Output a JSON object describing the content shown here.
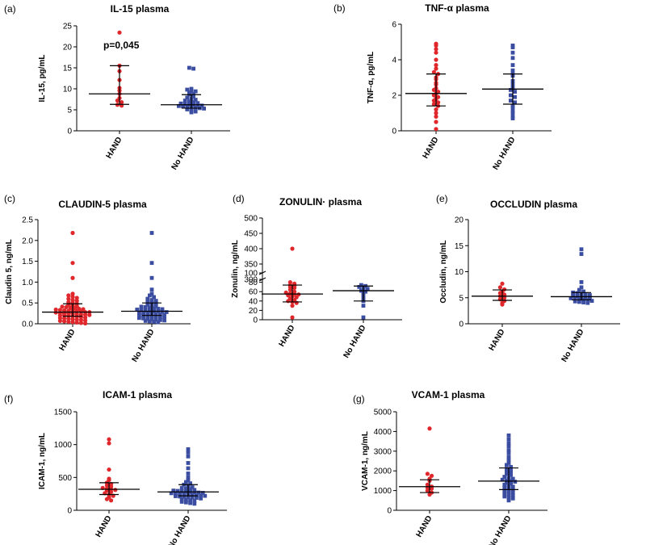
{
  "figure": {
    "background": "#ffffff",
    "hand_color": "#e0282c",
    "nohand_color": "#3a4da0"
  },
  "chart_data": [
    {
      "label": "(a)",
      "title": "IL-15 plasma",
      "type": "scatter",
      "ylabel": "IL-15, pg/mL",
      "ylim": [
        0,
        25
      ],
      "yticks": [
        "0",
        "5",
        "10",
        "15",
        "20",
        "25"
      ],
      "categories": [
        "HAND",
        "No HAND"
      ],
      "annotation": "p=0,045",
      "series": [
        {
          "name": "HAND",
          "marker": "circle",
          "median": 8.8,
          "iqr": [
            6.3,
            15.5
          ],
          "values": [
            23.4,
            15.5,
            14.2,
            12.1,
            10.2,
            9.6,
            8.8,
            7.8,
            7.2,
            6.8,
            6.2,
            6.0
          ]
        },
        {
          "name": "No HAND",
          "marker": "square",
          "median": 6.2,
          "iqr": [
            5.4,
            8.6
          ],
          "values": [
            15.0,
            14.8,
            10.0,
            9.8,
            9.5,
            9.4,
            9.1,
            8.8,
            8.6,
            8.2,
            7.9,
            7.6,
            7.4,
            7.2,
            7.0,
            6.8,
            6.6,
            6.5,
            6.4,
            6.3,
            6.2,
            6.1,
            6.0,
            5.9,
            5.8,
            5.7,
            5.6,
            5.5,
            5.4,
            5.3,
            5.1,
            4.8,
            4.6,
            4.4
          ]
        }
      ]
    },
    {
      "label": "(b)",
      "title": "TNF-α plasma",
      "type": "scatter",
      "ylabel": "TNF-α, pg/mL",
      "ylim": [
        0,
        6
      ],
      "yticks": [
        "0",
        "2",
        "4",
        "6"
      ],
      "categories": [
        "HAND",
        "No HAND"
      ],
      "series": [
        {
          "name": "HAND",
          "marker": "circle",
          "median": 2.1,
          "iqr": [
            1.4,
            3.2
          ],
          "values": [
            4.9,
            4.8,
            4.6,
            4.4,
            4.0,
            3.7,
            3.5,
            3.3,
            3.2,
            3.0,
            2.9,
            2.7,
            2.6,
            2.4,
            2.3,
            2.2,
            2.1,
            2.0,
            1.9,
            1.8,
            1.7,
            1.6,
            1.5,
            1.4,
            1.2,
            1.0,
            0.8,
            0.5,
            0.1
          ]
        },
        {
          "name": "No HAND",
          "marker": "square",
          "median": 2.35,
          "iqr": [
            1.5,
            3.2
          ],
          "values": [
            4.8,
            4.7,
            4.4,
            4.1,
            3.7,
            3.4,
            3.2,
            3.1,
            2.8,
            2.6,
            2.4,
            2.3,
            2.2,
            2.0,
            1.9,
            1.7,
            1.6,
            1.4,
            1.3,
            1.1,
            1.0,
            0.8,
            0.7
          ]
        }
      ]
    },
    {
      "label": "(c)",
      "title": "CLAUDIN-5 plasma",
      "type": "scatter",
      "ylabel": "Claudin 5, ng/mL",
      "ylim": [
        0,
        2.5
      ],
      "yticks": [
        "0.0",
        "0.5",
        "1.0",
        "1.5",
        "2.0",
        "2.5"
      ],
      "categories": [
        "HAND",
        "No HAND"
      ],
      "series": [
        {
          "name": "HAND",
          "marker": "circle",
          "median": 0.28,
          "iqr": [
            0.18,
            0.48
          ],
          "values": [
            2.18,
            1.46,
            1.1,
            0.72,
            0.68,
            0.65,
            0.62,
            0.6,
            0.57,
            0.55,
            0.52,
            0.5,
            0.48,
            0.46,
            0.44,
            0.42,
            0.41,
            0.4,
            0.38,
            0.37,
            0.36,
            0.35,
            0.34,
            0.33,
            0.32,
            0.31,
            0.3,
            0.3,
            0.29,
            0.28,
            0.28,
            0.27,
            0.26,
            0.25,
            0.25,
            0.24,
            0.23,
            0.22,
            0.22,
            0.21,
            0.2,
            0.2,
            0.19,
            0.18,
            0.17,
            0.16,
            0.15,
            0.14,
            0.13,
            0.12,
            0.11,
            0.1,
            0.09,
            0.08,
            0.07,
            0.06,
            0.05,
            0.04,
            0.03,
            0.02,
            0.01
          ]
        },
        {
          "name": "No HAND",
          "marker": "square",
          "median": 0.3,
          "iqr": [
            0.2,
            0.5
          ],
          "values": [
            2.18,
            1.46,
            1.1,
            0.82,
            0.72,
            0.68,
            0.64,
            0.6,
            0.57,
            0.55,
            0.52,
            0.5,
            0.48,
            0.46,
            0.44,
            0.42,
            0.41,
            0.4,
            0.38,
            0.37,
            0.36,
            0.35,
            0.34,
            0.33,
            0.32,
            0.31,
            0.3,
            0.3,
            0.29,
            0.28,
            0.27,
            0.26,
            0.25,
            0.24,
            0.23,
            0.22,
            0.21,
            0.2,
            0.2,
            0.19,
            0.18,
            0.17,
            0.16,
            0.15,
            0.14,
            0.13,
            0.12,
            0.11,
            0.1,
            0.09,
            0.08,
            0.07,
            0.06,
            0.05,
            0.04
          ]
        }
      ]
    },
    {
      "label": "(d)",
      "title": "ZONULIN·  plasma",
      "type": "scatter",
      "ylabel": "Zonulin, ng/mL",
      "ylim": [
        0,
        500
      ],
      "axis_break": [
        100,
        300
      ],
      "yticks": [
        "0",
        "20",
        "40",
        "60",
        "80",
        "100",
        "300",
        "350",
        "400",
        "450",
        "500"
      ],
      "categories": [
        "HAND",
        "No HAND"
      ],
      "series": [
        {
          "name": "HAND",
          "marker": "circle",
          "median": 55,
          "iqr": [
            38,
            74
          ],
          "values": [
            400,
            80,
            77,
            74,
            72,
            70,
            68,
            64,
            60,
            58,
            56,
            55,
            54,
            52,
            50,
            48,
            45,
            42,
            40,
            38,
            36,
            30,
            5
          ]
        },
        {
          "name": "No HAND",
          "marker": "square",
          "median": 62,
          "iqr": [
            40,
            72
          ],
          "values": [
            74,
            72,
            70,
            68,
            66,
            62,
            60,
            58,
            52,
            45,
            40,
            30,
            5
          ]
        }
      ]
    },
    {
      "label": "(e)",
      "title": "OCCLUDIN plasma",
      "type": "scatter",
      "ylabel": "Occludin, ng/mL",
      "ylim": [
        0,
        20
      ],
      "yticks": [
        "0",
        "5",
        "10",
        "15",
        "20"
      ],
      "categories": [
        "HAND",
        "No HAND"
      ],
      "series": [
        {
          "name": "HAND",
          "marker": "circle",
          "median": 5.3,
          "iqr": [
            4.5,
            6.5
          ],
          "values": [
            7.7,
            7.0,
            6.6,
            6.2,
            5.9,
            5.6,
            5.3,
            5.0,
            4.7,
            4.4,
            4.0,
            3.7
          ]
        },
        {
          "name": "No HAND",
          "marker": "square",
          "median": 5.2,
          "iqr": [
            4.6,
            6.0
          ],
          "values": [
            14.3,
            13.4,
            8.0,
            7.0,
            6.5,
            6.2,
            6.0,
            5.9,
            5.7,
            5.6,
            5.5,
            5.4,
            5.3,
            5.2,
            5.1,
            5.0,
            4.9,
            4.8,
            4.7,
            4.6,
            4.5,
            4.4,
            4.3,
            4.2,
            4.1,
            4.0
          ]
        }
      ]
    },
    {
      "label": "(f)",
      "title": "ICAM-1 plasma",
      "type": "scatter",
      "ylabel": "ICAM-1, ng/mL",
      "ylim": [
        0,
        1500
      ],
      "yticks": [
        "0",
        "500",
        "1000",
        "1500"
      ],
      "categories": [
        "HAND",
        "No HAND"
      ],
      "series": [
        {
          "name": "HAND",
          "marker": "circle",
          "median": 320,
          "iqr": [
            240,
            420
          ],
          "values": [
            1080,
            1020,
            620,
            480,
            460,
            420,
            400,
            380,
            360,
            340,
            330,
            320,
            310,
            300,
            280,
            260,
            240,
            220,
            200,
            170,
            150
          ]
        },
        {
          "name": "No HAND",
          "marker": "square",
          "median": 280,
          "iqr": [
            220,
            390
          ],
          "values": [
            930,
            880,
            820,
            720,
            640,
            560,
            500,
            460,
            430,
            410,
            390,
            370,
            350,
            340,
            330,
            320,
            310,
            300,
            295,
            290,
            285,
            280,
            275,
            270,
            265,
            260,
            255,
            250,
            245,
            240,
            235,
            230,
            225,
            220,
            215,
            210,
            205,
            200,
            195,
            190,
            180,
            170,
            160,
            150,
            140,
            130,
            120,
            110,
            100
          ]
        }
      ]
    },
    {
      "label": "(g)",
      "title": "VCAM-1 plasma",
      "type": "scatter",
      "ylabel": "VCAM-1, ng/mL",
      "ylim": [
        0,
        5000
      ],
      "yticks": [
        "0",
        "1000",
        "2000",
        "3000",
        "4000",
        "5000"
      ],
      "categories": [
        "HAND",
        "No HAND"
      ],
      "series": [
        {
          "name": "HAND",
          "marker": "circle",
          "median": 1200,
          "iqr": [
            900,
            1550
          ],
          "values": [
            4150,
            1850,
            1750,
            1600,
            1500,
            1300,
            1200,
            1150,
            1100,
            1000,
            900,
            800
          ]
        },
        {
          "name": "No HAND",
          "marker": "square",
          "median": 1480,
          "iqr": [
            1050,
            2150
          ],
          "values": [
            3800,
            3600,
            3400,
            3250,
            3050,
            2900,
            2700,
            2550,
            2400,
            2300,
            2200,
            2100,
            2050,
            2000,
            1900,
            1850,
            1800,
            1700,
            1650,
            1600,
            1550,
            1500,
            1480,
            1450,
            1400,
            1350,
            1300,
            1250,
            1200,
            1150,
            1100,
            1050,
            1000,
            950,
            900,
            850,
            800,
            750,
            700,
            650,
            600,
            500
          ]
        }
      ]
    }
  ]
}
